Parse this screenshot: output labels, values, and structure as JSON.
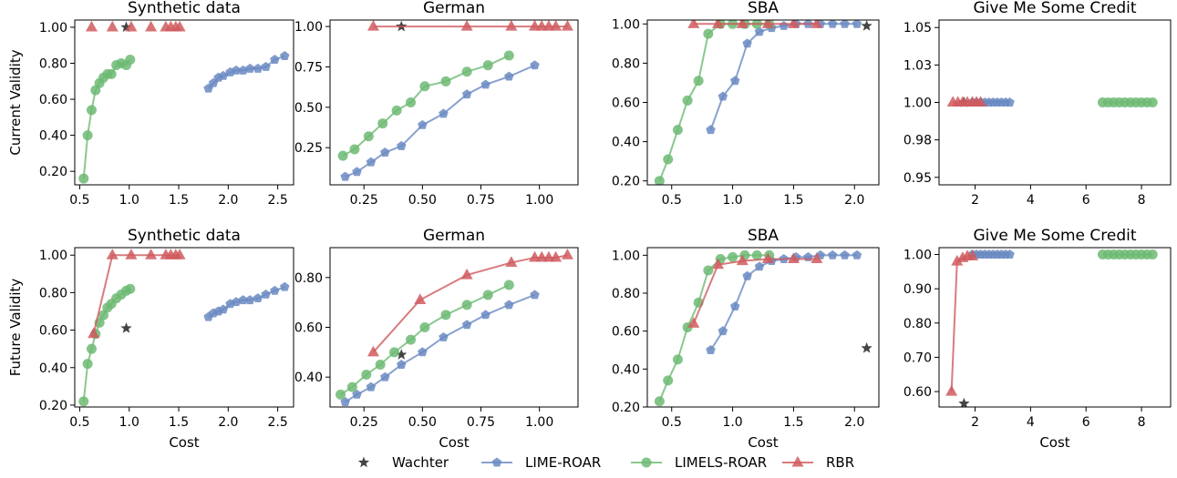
{
  "legend": [
    {
      "name": "Wachter",
      "marker": "star",
      "color": "#444444"
    },
    {
      "name": "LIME-ROAR",
      "marker": "pentagon",
      "color": "#6a89c2"
    },
    {
      "name": "LIMELS-ROAR",
      "marker": "circle",
      "color": "#6dba73"
    },
    {
      "name": "RBR",
      "marker": "triangle",
      "color": "#d05a5e"
    }
  ],
  "chart_data": [
    {
      "type": "line",
      "title": "Synthetic data",
      "xlabel": "",
      "ylabel": "Current Validity",
      "xlim": [
        0.45,
        2.66
      ],
      "ylim": [
        0.125,
        1.04
      ],
      "xticks": [
        0.5,
        1.0,
        1.5,
        2.0,
        2.5
      ],
      "xtick_labels": [
        "0.5",
        "1.0",
        "1.5",
        "2.0",
        "2.5"
      ],
      "yticks": [
        0.2,
        0.4,
        0.6,
        0.8,
        1.0
      ],
      "ytick_labels": [
        "0.20",
        "0.40",
        "0.60",
        "0.80",
        "1.00"
      ],
      "series": [
        {
          "name": "Wachter",
          "x": [
            0.97
          ],
          "y": [
            1.0
          ]
        },
        {
          "name": "LIME-ROAR",
          "x": [
            1.8,
            1.85,
            1.9,
            1.95,
            2.02,
            2.08,
            2.15,
            2.22,
            2.3,
            2.38,
            2.47,
            2.57
          ],
          "y": [
            0.66,
            0.69,
            0.72,
            0.73,
            0.75,
            0.76,
            0.76,
            0.77,
            0.77,
            0.78,
            0.82,
            0.84
          ]
        },
        {
          "name": "LIMELS-ROAR",
          "x": [
            0.54,
            0.58,
            0.62,
            0.66,
            0.7,
            0.74,
            0.78,
            0.82,
            0.87,
            0.92,
            0.97,
            1.01
          ],
          "y": [
            0.16,
            0.4,
            0.54,
            0.65,
            0.69,
            0.72,
            0.74,
            0.74,
            0.79,
            0.8,
            0.79,
            0.82
          ]
        },
        {
          "name": "RBR",
          "x": [
            0.62,
            0.83,
            1.02,
            1.22,
            1.37,
            1.42,
            1.47,
            1.51
          ],
          "y": [
            1.0,
            1.0,
            1.0,
            1.0,
            1.0,
            1.0,
            1.0,
            1.0
          ],
          "line": false
        }
      ]
    },
    {
      "type": "line",
      "title": "German",
      "xlabel": "",
      "ylabel": "",
      "xlim": [
        0.105,
        1.165
      ],
      "ylim": [
        0.02,
        1.04
      ],
      "xticks": [
        0.25,
        0.5,
        0.75,
        1.0
      ],
      "xtick_labels": [
        "0.25",
        "0.50",
        "0.75",
        "1.00"
      ],
      "yticks": [
        0.25,
        0.5,
        0.75,
        1.0
      ],
      "ytick_labels": [
        "0.25",
        "0.50",
        "0.75",
        "1.00"
      ],
      "series": [
        {
          "name": "Wachter",
          "x": [
            0.41
          ],
          "y": [
            1.0
          ]
        },
        {
          "name": "LIME-ROAR",
          "x": [
            0.17,
            0.22,
            0.28,
            0.34,
            0.41,
            0.5,
            0.59,
            0.69,
            0.77,
            0.87,
            0.98
          ],
          "y": [
            0.07,
            0.1,
            0.16,
            0.22,
            0.26,
            0.39,
            0.46,
            0.58,
            0.64,
            0.69,
            0.76
          ]
        },
        {
          "name": "LIMELS-ROAR",
          "x": [
            0.16,
            0.21,
            0.27,
            0.33,
            0.39,
            0.45,
            0.51,
            0.6,
            0.69,
            0.78,
            0.87
          ],
          "y": [
            0.2,
            0.24,
            0.32,
            0.4,
            0.48,
            0.53,
            0.63,
            0.66,
            0.72,
            0.76,
            0.82
          ]
        },
        {
          "name": "RBR",
          "x": [
            0.29,
            0.69,
            0.88,
            0.98,
            1.01,
            1.04,
            1.07,
            1.12
          ],
          "y": [
            1.0,
            1.0,
            1.0,
            1.0,
            1.0,
            1.0,
            1.0,
            1.0
          ],
          "line": true
        }
      ]
    },
    {
      "type": "line",
      "title": "SBA",
      "xlabel": "",
      "ylabel": "",
      "xlim": [
        0.3,
        2.2
      ],
      "ylim": [
        0.18,
        1.02
      ],
      "xticks": [
        0.5,
        1.0,
        1.5,
        2.0
      ],
      "xtick_labels": [
        "0.5",
        "1.0",
        "1.5",
        "2.0"
      ],
      "yticks": [
        0.2,
        0.4,
        0.6,
        0.8,
        1.0
      ],
      "ytick_labels": [
        "0.20",
        "0.40",
        "0.60",
        "0.80",
        "1.00"
      ],
      "series": [
        {
          "name": "Wachter",
          "x": [
            2.1
          ],
          "y": [
            0.99
          ]
        },
        {
          "name": "LIME-ROAR",
          "x": [
            0.82,
            0.92,
            1.02,
            1.12,
            1.22,
            1.32,
            1.42,
            1.52,
            1.62,
            1.72,
            1.82,
            1.92,
            2.02
          ],
          "y": [
            0.46,
            0.63,
            0.71,
            0.9,
            0.96,
            0.98,
            0.99,
            1.0,
            1.0,
            1.0,
            1.0,
            1.0,
            1.0
          ]
        },
        {
          "name": "LIMELS-ROAR",
          "x": [
            0.4,
            0.47,
            0.55,
            0.63,
            0.72,
            0.8,
            0.9,
            1.0,
            1.1,
            1.2,
            1.3
          ],
          "y": [
            0.2,
            0.31,
            0.46,
            0.61,
            0.71,
            0.95,
            1.0,
            1.0,
            1.0,
            1.0,
            1.0
          ]
        },
        {
          "name": "RBR",
          "x": [
            0.68,
            0.88,
            1.08,
            1.29,
            1.5,
            1.69
          ],
          "y": [
            1.0,
            1.0,
            1.0,
            1.0,
            1.0,
            1.0
          ],
          "line": true
        }
      ]
    },
    {
      "type": "line",
      "title": "Give Me Some Credit",
      "xlabel": "",
      "ylabel": "",
      "xlim": [
        0.7,
        9.05
      ],
      "ylim": [
        0.945,
        1.055
      ],
      "xticks": [
        2,
        4,
        6,
        8
      ],
      "xtick_labels": [
        "2",
        "4",
        "6",
        "8"
      ],
      "yticks": [
        0.95,
        0.975,
        1.0,
        1.025,
        1.05
      ],
      "ytick_labels": [
        "0.95",
        "0.98",
        "1.00",
        "1.03",
        "1.05"
      ],
      "series": [
        {
          "name": "Wachter",
          "x": [
            1.6
          ],
          "y": [
            1.0
          ]
        },
        {
          "name": "LIME-ROAR",
          "x": [
            1.9,
            2.05,
            2.2,
            2.35,
            2.5,
            2.65,
            2.8,
            2.95,
            3.1,
            3.25
          ],
          "y": [
            1.0,
            1.0,
            1.0,
            1.0,
            1.0,
            1.0,
            1.0,
            1.0,
            1.0,
            1.0
          ]
        },
        {
          "name": "LIMELS-ROAR",
          "x": [
            6.6,
            6.8,
            7.0,
            7.2,
            7.4,
            7.6,
            7.8,
            8.0,
            8.2,
            8.4
          ],
          "y": [
            1.0,
            1.0,
            1.0,
            1.0,
            1.0,
            1.0,
            1.0,
            1.0,
            1.0,
            1.0
          ]
        },
        {
          "name": "RBR",
          "x": [
            1.2,
            1.38,
            1.55,
            1.72,
            1.9,
            2.05,
            2.2
          ],
          "y": [
            1.0,
            1.0,
            1.0,
            1.0,
            1.0,
            1.0,
            1.0
          ],
          "line": true
        }
      ]
    },
    {
      "type": "line",
      "title": "Synthetic data",
      "xlabel": "Cost",
      "ylabel": "Future Validity",
      "xlim": [
        0.45,
        2.66
      ],
      "ylim": [
        0.19,
        1.04
      ],
      "xticks": [
        0.5,
        1.0,
        1.5,
        2.0,
        2.5
      ],
      "xtick_labels": [
        "0.5",
        "1.0",
        "1.5",
        "2.0",
        "2.5"
      ],
      "yticks": [
        0.2,
        0.4,
        0.6,
        0.8,
        1.0
      ],
      "ytick_labels": [
        "0.20",
        "0.40",
        "0.60",
        "0.80",
        "1.00"
      ],
      "series": [
        {
          "name": "Wachter",
          "x": [
            0.97
          ],
          "y": [
            0.61
          ]
        },
        {
          "name": "LIME-ROAR",
          "x": [
            1.8,
            1.85,
            1.9,
            1.95,
            2.02,
            2.08,
            2.15,
            2.22,
            2.3,
            2.38,
            2.47,
            2.57
          ],
          "y": [
            0.67,
            0.69,
            0.7,
            0.71,
            0.74,
            0.75,
            0.76,
            0.76,
            0.77,
            0.79,
            0.81,
            0.83
          ]
        },
        {
          "name": "LIMELS-ROAR",
          "x": [
            0.54,
            0.58,
            0.62,
            0.66,
            0.7,
            0.74,
            0.78,
            0.82,
            0.87,
            0.92,
            0.97,
            1.01
          ],
          "y": [
            0.22,
            0.42,
            0.5,
            0.58,
            0.64,
            0.68,
            0.72,
            0.74,
            0.77,
            0.79,
            0.81,
            0.82
          ]
        },
        {
          "name": "RBR",
          "x": [
            0.64,
            0.83,
            1.02,
            1.22,
            1.37,
            1.42,
            1.47,
            1.51
          ],
          "y": [
            0.58,
            1.0,
            1.0,
            1.0,
            1.0,
            1.0,
            1.0,
            1.0
          ],
          "line": true
        }
      ]
    },
    {
      "type": "line",
      "title": "German",
      "xlabel": "Cost",
      "ylabel": "",
      "xlim": [
        0.105,
        1.165
      ],
      "ylim": [
        0.28,
        0.92
      ],
      "xticks": [
        0.25,
        0.5,
        0.75,
        1.0
      ],
      "xtick_labels": [
        "0.25",
        "0.50",
        "0.75",
        "1.00"
      ],
      "yticks": [
        0.4,
        0.6,
        0.8
      ],
      "ytick_labels": [
        "0.40",
        "0.60",
        "0.80"
      ],
      "series": [
        {
          "name": "Wachter",
          "x": [
            0.41
          ],
          "y": [
            0.49
          ]
        },
        {
          "name": "LIME-ROAR",
          "x": [
            0.17,
            0.22,
            0.28,
            0.34,
            0.41,
            0.5,
            0.59,
            0.69,
            0.77,
            0.87,
            0.98
          ],
          "y": [
            0.3,
            0.33,
            0.36,
            0.4,
            0.45,
            0.5,
            0.56,
            0.61,
            0.65,
            0.69,
            0.73
          ]
        },
        {
          "name": "LIMELS-ROAR",
          "x": [
            0.15,
            0.2,
            0.26,
            0.32,
            0.38,
            0.45,
            0.51,
            0.6,
            0.69,
            0.78,
            0.87
          ],
          "y": [
            0.33,
            0.36,
            0.41,
            0.45,
            0.5,
            0.55,
            0.6,
            0.65,
            0.69,
            0.73,
            0.77
          ]
        },
        {
          "name": "RBR",
          "x": [
            0.29,
            0.49,
            0.69,
            0.88,
            0.98,
            1.01,
            1.04,
            1.07,
            1.12
          ],
          "y": [
            0.5,
            0.71,
            0.81,
            0.86,
            0.88,
            0.88,
            0.88,
            0.88,
            0.89
          ],
          "line": true
        }
      ]
    },
    {
      "type": "line",
      "title": "SBA",
      "xlabel": "Cost",
      "ylabel": "",
      "xlim": [
        0.3,
        2.2
      ],
      "ylim": [
        0.2,
        1.04
      ],
      "xticks": [
        0.5,
        1.0,
        1.5,
        2.0
      ],
      "xtick_labels": [
        "0.5",
        "1.0",
        "1.5",
        "2.0"
      ],
      "yticks": [
        0.2,
        0.4,
        0.6,
        0.8,
        1.0
      ],
      "ytick_labels": [
        "0.20",
        "0.40",
        "0.60",
        "0.80",
        "1.00"
      ],
      "series": [
        {
          "name": "Wachter",
          "x": [
            2.1
          ],
          "y": [
            0.51
          ]
        },
        {
          "name": "LIME-ROAR",
          "x": [
            0.82,
            0.92,
            1.02,
            1.12,
            1.22,
            1.32,
            1.42,
            1.52,
            1.62,
            1.72,
            1.82,
            1.92,
            2.02
          ],
          "y": [
            0.5,
            0.6,
            0.73,
            0.89,
            0.94,
            0.97,
            0.98,
            0.99,
            0.99,
            1.0,
            1.0,
            1.0,
            1.0
          ]
        },
        {
          "name": "LIMELS-ROAR",
          "x": [
            0.4,
            0.47,
            0.55,
            0.63,
            0.72,
            0.8,
            0.9,
            1.0,
            1.1,
            1.2,
            1.3
          ],
          "y": [
            0.23,
            0.34,
            0.45,
            0.62,
            0.75,
            0.92,
            0.98,
            0.99,
            1.0,
            1.0,
            1.0
          ]
        },
        {
          "name": "RBR",
          "x": [
            0.68,
            0.88,
            1.08,
            1.29,
            1.5,
            1.69
          ],
          "y": [
            0.64,
            0.95,
            0.97,
            0.98,
            0.98,
            0.98
          ],
          "line": true
        }
      ]
    },
    {
      "type": "line",
      "title": "Give Me Some Credit",
      "xlabel": "Cost",
      "ylabel": "",
      "xlim": [
        0.7,
        9.05
      ],
      "ylim": [
        0.555,
        1.02
      ],
      "xticks": [
        2,
        4,
        6,
        8
      ],
      "xtick_labels": [
        "2",
        "4",
        "6",
        "8"
      ],
      "yticks": [
        0.6,
        0.7,
        0.8,
        0.9,
        1.0
      ],
      "ytick_labels": [
        "0.60",
        "0.70",
        "0.80",
        "0.90",
        "1.00"
      ],
      "series": [
        {
          "name": "Wachter",
          "x": [
            1.6
          ],
          "y": [
            0.565
          ]
        },
        {
          "name": "LIME-ROAR",
          "x": [
            1.9,
            2.05,
            2.2,
            2.35,
            2.5,
            2.65,
            2.8,
            2.95,
            3.1,
            3.25
          ],
          "y": [
            1.0,
            1.0,
            1.0,
            1.0,
            1.0,
            1.0,
            1.0,
            1.0,
            1.0,
            1.0
          ]
        },
        {
          "name": "LIMELS-ROAR",
          "x": [
            6.6,
            6.8,
            7.0,
            7.2,
            7.4,
            7.6,
            7.8,
            8.0,
            8.2,
            8.4
          ],
          "y": [
            1.0,
            1.0,
            1.0,
            1.0,
            1.0,
            1.0,
            1.0,
            1.0,
            1.0,
            1.0
          ]
        },
        {
          "name": "RBR",
          "x": [
            1.15,
            1.35,
            1.55,
            1.72,
            1.9
          ],
          "y": [
            0.6,
            0.98,
            0.99,
            0.995,
            0.995
          ],
          "line": true
        }
      ]
    }
  ]
}
